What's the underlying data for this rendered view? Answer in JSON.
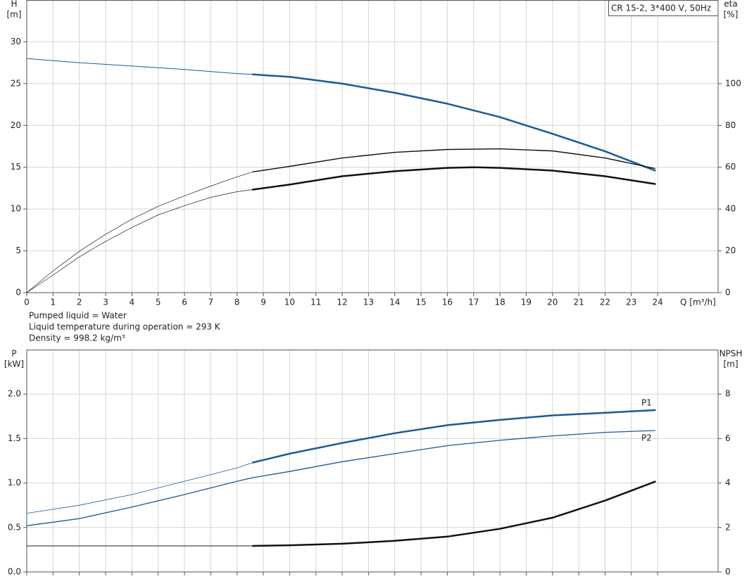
{
  "chart_data": [
    {
      "type": "line",
      "title": "CR 15-2, 3*400 V, 50Hz",
      "ylabel": [
        "H",
        "[m]"
      ],
      "y2label": [
        "eta",
        "[%]"
      ],
      "xlabel": "Q [m³/h]",
      "xlim": [
        0,
        26.3
      ],
      "xticks": [
        0,
        1,
        2,
        3,
        4,
        5,
        6,
        7,
        8,
        9,
        10,
        11,
        12,
        13,
        14,
        15,
        16,
        17,
        18,
        19,
        20,
        21,
        22,
        23,
        24
      ],
      "xtick_labels": true,
      "ylim": [
        0,
        35
      ],
      "yticks": [
        0,
        5,
        10,
        15,
        20,
        25,
        30
      ],
      "y2lim": [
        0,
        140
      ],
      "y2ticks": [
        0,
        20,
        40,
        60,
        80,
        100
      ],
      "grid": true,
      "annotations": [
        "Pumped liquid = Water",
        "Liquid temperature during operation = 293 K",
        "Density = 998.2 kg/m³"
      ],
      "series": [
        {
          "color": "#1a5a96",
          "line_width": 1,
          "axis": "y",
          "x": [
            0,
            2,
            4,
            6,
            8,
            8.6
          ],
          "values": [
            28,
            27.5,
            27.1,
            26.7,
            26.2,
            26.1
          ]
        },
        {
          "color": "#1a5a96",
          "line_width": 2.5,
          "axis": "y",
          "x": [
            8.6,
            10,
            12,
            14,
            16,
            18,
            20,
            22,
            23.9
          ],
          "values": [
            26.1,
            25.8,
            25.0,
            23.9,
            22.6,
            21.0,
            19.0,
            16.9,
            14.6
          ]
        },
        {
          "color": "#222222",
          "line_width": 0.7,
          "axis": "y2",
          "x": [
            0,
            1,
            2,
            3,
            4,
            5,
            6,
            7,
            8,
            8.6
          ],
          "values": [
            0,
            10.4,
            19.8,
            27.9,
            35.2,
            41.3,
            46.3,
            51,
            55.4,
            57.8
          ]
        },
        {
          "color": "#111111",
          "line_width": 1.4,
          "axis": "y2",
          "x": [
            8.6,
            10,
            12,
            14,
            16,
            18,
            20,
            22,
            23.9
          ],
          "values": [
            57.8,
            60.4,
            64.4,
            67.1,
            68.5,
            68.8,
            67.8,
            64.4,
            59.4
          ]
        },
        {
          "color": "#222222",
          "line_width": 0.7,
          "axis": "y2",
          "x": [
            0,
            1,
            2,
            3,
            4,
            5,
            6,
            7,
            8,
            8.6
          ],
          "values": [
            0,
            8.4,
            17.1,
            24.5,
            31.2,
            37.2,
            41.6,
            45.6,
            48.3,
            49.3
          ]
        },
        {
          "color": "#111111",
          "line_width": 2.5,
          "axis": "y2",
          "x": [
            8.6,
            10,
            12,
            14,
            16,
            17,
            18,
            20,
            22,
            23.9
          ],
          "values": [
            49.3,
            51.7,
            55.7,
            58.1,
            59.7,
            60,
            59.7,
            58.4,
            55.7,
            52
          ]
        }
      ]
    },
    {
      "type": "line",
      "ylabel": [
        "P",
        "[kW]"
      ],
      "y2label": [
        "NPSH",
        "[m]"
      ],
      "xlim": [
        0,
        26.3
      ],
      "xticks": [
        0,
        1,
        2,
        3,
        4,
        5,
        6,
        7,
        8,
        9,
        10,
        11,
        12,
        13,
        14,
        15,
        16,
        17,
        18,
        19,
        20,
        21,
        22,
        23,
        24
      ],
      "xtick_labels": false,
      "ylim": [
        0,
        2.5
      ],
      "yticks": [
        {
          "value": 0,
          "label": "0.0"
        },
        0.5,
        {
          "value": 1,
          "label": "1.0"
        },
        1.5,
        {
          "value": 2,
          "label": "2.0"
        }
      ],
      "y2lim": [
        0,
        10
      ],
      "y2ticks": [
        0,
        2,
        4,
        6,
        8
      ],
      "grid": true,
      "series": [
        {
          "color": "#1a5a96",
          "line_width": 0.8,
          "axis": "y",
          "x": [
            0,
            2,
            4,
            6,
            8,
            8.6
          ],
          "values": [
            0.66,
            0.75,
            0.87,
            1.02,
            1.17,
            1.23
          ]
        },
        {
          "name": "P1",
          "color": "#1a5a96",
          "line_width": 2.5,
          "axis": "y",
          "x": [
            8.6,
            10,
            12,
            14,
            16,
            18,
            20,
            22,
            23.9
          ],
          "values": [
            1.23,
            1.33,
            1.45,
            1.56,
            1.65,
            1.71,
            1.76,
            1.79,
            1.82
          ]
        },
        {
          "name": "P2",
          "color": "#1a5a96",
          "line_width": 1.3,
          "axis": "y",
          "x": [
            0,
            2,
            4,
            6,
            8,
            8.6,
            10,
            12,
            14,
            16,
            18,
            20,
            22,
            23.9
          ],
          "values": [
            0.52,
            0.6,
            0.73,
            0.87,
            1.02,
            1.06,
            1.13,
            1.24,
            1.33,
            1.42,
            1.48,
            1.53,
            1.57,
            1.59
          ]
        },
        {
          "color": "#222222",
          "line_width": 1,
          "axis": "y2",
          "x": [
            0,
            4,
            8.6
          ],
          "values": [
            1.17,
            1.17,
            1.17
          ]
        },
        {
          "color": "#111111",
          "line_width": 2.5,
          "axis": "y2",
          "x": [
            8.6,
            10,
            12,
            14,
            16,
            18,
            20,
            22,
            23.9
          ],
          "values": [
            1.17,
            1.2,
            1.27,
            1.4,
            1.59,
            1.94,
            2.44,
            3.21,
            4.06
          ]
        }
      ]
    }
  ]
}
